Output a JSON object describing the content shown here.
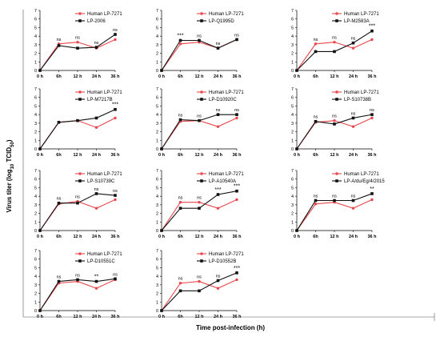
{
  "figure": {
    "ylabel_main": "Virus titer (log",
    "ylabel_sub": "10",
    "ylabel_end": " TCID",
    "ylabel_sub2": "50",
    "ylabel_close": ")",
    "xlabel": "Time post-infection (h)"
  },
  "colors": {
    "human": "#e8474b",
    "lp": "#111111"
  },
  "chart_data": [
    {
      "type": "line",
      "x": [
        "0 h",
        "6h",
        "12 h",
        "24 h",
        "36 h"
      ],
      "ylim": [
        0,
        7
      ],
      "yticks": [
        0,
        1,
        2,
        3,
        4,
        5,
        6,
        7
      ],
      "series": [
        {
          "name": "Human LP-7271",
          "values": [
            0,
            3.1,
            3.3,
            2.6,
            3.6
          ],
          "color": "#e8474b"
        },
        {
          "name": "LP-2006",
          "values": [
            0,
            2.9,
            2.6,
            2.7,
            4.2
          ],
          "color": "#111111"
        }
      ],
      "annotations": [
        "",
        "ns",
        "ns",
        "ns",
        "ns"
      ]
    },
    {
      "type": "line",
      "x": [
        "0 h",
        "6h",
        "12 h",
        "24 h",
        "36 h"
      ],
      "ylim": [
        0,
        7
      ],
      "yticks": [
        0,
        1,
        2,
        3,
        4,
        5,
        6,
        7
      ],
      "series": [
        {
          "name": "Human LP-7271",
          "values": [
            0,
            3.1,
            3.3,
            2.6,
            3.6
          ],
          "color": "#e8474b"
        },
        {
          "name": "LP-Q1995D",
          "values": [
            0,
            3.5,
            3.5,
            2.6,
            3.6
          ],
          "color": "#111111"
        }
      ],
      "annotations": [
        "",
        "***",
        "ns",
        "ns",
        "ns"
      ]
    },
    {
      "type": "line",
      "x": [
        "0 h",
        "6h",
        "12 h",
        "24 h",
        "36 h"
      ],
      "ylim": [
        0,
        7
      ],
      "yticks": [
        0,
        1,
        2,
        3,
        4,
        5,
        6,
        7
      ],
      "series": [
        {
          "name": "Human LP-7271",
          "values": [
            0,
            3.1,
            3.3,
            2.6,
            3.6
          ],
          "color": "#e8474b"
        },
        {
          "name": "LP-M2583A",
          "values": [
            0,
            2.2,
            2.2,
            3.2,
            4.6
          ],
          "color": "#111111"
        }
      ],
      "annotations": [
        "",
        "ns",
        "ns",
        "ns",
        "***"
      ]
    },
    {
      "type": "line",
      "x": [
        "0 h",
        "6h",
        "12 h",
        "24 h",
        "36 h"
      ],
      "ylim": [
        0,
        7
      ],
      "yticks": [
        0,
        1,
        2,
        3,
        4,
        5,
        6,
        7
      ],
      "series": [
        {
          "name": "Human LP-7271",
          "values": [
            0,
            3.1,
            3.3,
            2.5,
            3.6
          ],
          "color": "#e8474b"
        },
        {
          "name": "LP-M7217B",
          "values": [
            0,
            3.1,
            3.3,
            3.6,
            4.6
          ],
          "color": "#111111"
        }
      ],
      "annotations": [
        "",
        "",
        "",
        "",
        "***"
      ]
    },
    {
      "type": "line",
      "x": [
        "0 h",
        "6h",
        "12 h",
        "24 h",
        "36 h"
      ],
      "ylim": [
        0,
        7
      ],
      "yticks": [
        0,
        1,
        2,
        3,
        4,
        5,
        6,
        7
      ],
      "series": [
        {
          "name": "Human LP-7271",
          "values": [
            0,
            3.2,
            3.3,
            2.6,
            3.6
          ],
          "color": "#e8474b"
        },
        {
          "name": "LP-D10920C",
          "values": [
            0,
            3.4,
            3.3,
            4.0,
            4.0
          ],
          "color": "#111111"
        }
      ],
      "annotations": [
        "",
        "ns",
        "ns",
        "ns",
        "ns"
      ]
    },
    {
      "type": "line",
      "x": [
        "0 h",
        "6h",
        "12 h",
        "24 h",
        "36 h"
      ],
      "ylim": [
        0,
        7
      ],
      "yticks": [
        0,
        1,
        2,
        3,
        4,
        5,
        6,
        7
      ],
      "series": [
        {
          "name": "Human LP-7271",
          "values": [
            0,
            3.1,
            3.3,
            2.6,
            3.6
          ],
          "color": "#e8474b"
        },
        {
          "name": "LP-S10738B",
          "values": [
            0,
            3.2,
            2.9,
            3.6,
            4.0
          ],
          "color": "#111111"
        }
      ],
      "annotations": [
        "",
        "ns",
        "ns",
        "ns",
        "ns"
      ]
    },
    {
      "type": "line",
      "x": [
        "0 h",
        "6h",
        "12 h",
        "24 h",
        "36 h"
      ],
      "ylim": [
        0,
        7
      ],
      "yticks": [
        0,
        1,
        2,
        3,
        4,
        5,
        6,
        7
      ],
      "series": [
        {
          "name": "Human LP-7271",
          "values": [
            0,
            3.1,
            3.4,
            2.6,
            3.6
          ],
          "color": "#e8474b"
        },
        {
          "name": "LP-S10739C",
          "values": [
            0,
            3.2,
            3.2,
            4.3,
            4.1
          ],
          "color": "#111111"
        }
      ],
      "annotations": [
        "",
        "ns",
        "ns",
        "ns",
        "ns"
      ]
    },
    {
      "type": "line",
      "x": [
        "0 h",
        "6h",
        "12 h",
        "24 h",
        "36 h"
      ],
      "ylim": [
        0,
        7
      ],
      "yticks": [
        0,
        1,
        2,
        3,
        4,
        5,
        6,
        7
      ],
      "series": [
        {
          "name": "Human LP-7271",
          "values": [
            0,
            3.3,
            3.3,
            2.6,
            3.6
          ],
          "color": "#e8474b"
        },
        {
          "name": "LP-A10540A",
          "values": [
            0,
            2.6,
            2.6,
            4.2,
            4.6
          ],
          "color": "#111111"
        }
      ],
      "annotations": [
        "",
        "ns",
        "ns",
        "***",
        "***"
      ]
    },
    {
      "type": "line",
      "x": [
        "0 h",
        "6h",
        "12 h",
        "24 h",
        "36 h"
      ],
      "ylim": [
        0,
        7
      ],
      "yticks": [
        0,
        1,
        2,
        3,
        4,
        5,
        6,
        7
      ],
      "series": [
        {
          "name": "Human LP-7271",
          "values": [
            0,
            3.1,
            3.3,
            2.6,
            3.6
          ],
          "color": "#e8474b"
        },
        {
          "name": "LP-A/du/Eg/4/2015",
          "values": [
            0,
            3.5,
            3.5,
            3.5,
            4.3
          ],
          "color": "#111111"
        }
      ],
      "annotations": [
        "",
        "ns",
        "ns",
        "ns",
        "**"
      ]
    },
    {
      "type": "line",
      "x": [
        "0 h",
        "6h",
        "12 h",
        "24 h",
        "36 h"
      ],
      "ylim": [
        0,
        7
      ],
      "yticks": [
        0,
        1,
        2,
        3,
        4,
        5,
        6,
        7
      ],
      "series": [
        {
          "name": "Human LP-7271",
          "values": [
            0,
            3.2,
            3.4,
            2.6,
            3.6
          ],
          "color": "#e8474b"
        },
        {
          "name": "LP-D10551C",
          "values": [
            0,
            3.4,
            3.6,
            3.4,
            3.7
          ],
          "color": "#111111"
        }
      ],
      "annotations": [
        "",
        "ns",
        "ns",
        "**",
        "ns"
      ]
    },
    {
      "type": "line",
      "x": [
        "0 h",
        "6h",
        "12 h",
        "24 h",
        "36 h"
      ],
      "ylim": [
        0,
        7
      ],
      "yticks": [
        0,
        1,
        2,
        3,
        4,
        5,
        6,
        7
      ],
      "series": [
        {
          "name": "Human LP-7271",
          "values": [
            0,
            3.2,
            3.4,
            2.6,
            3.6
          ],
          "color": "#e8474b"
        },
        {
          "name": "LP-D10552B",
          "values": [
            0,
            2.3,
            2.3,
            3.5,
            4.4
          ],
          "color": "#111111"
        }
      ],
      "annotations": [
        "",
        "ns",
        "ns",
        "ns",
        "***"
      ]
    }
  ]
}
